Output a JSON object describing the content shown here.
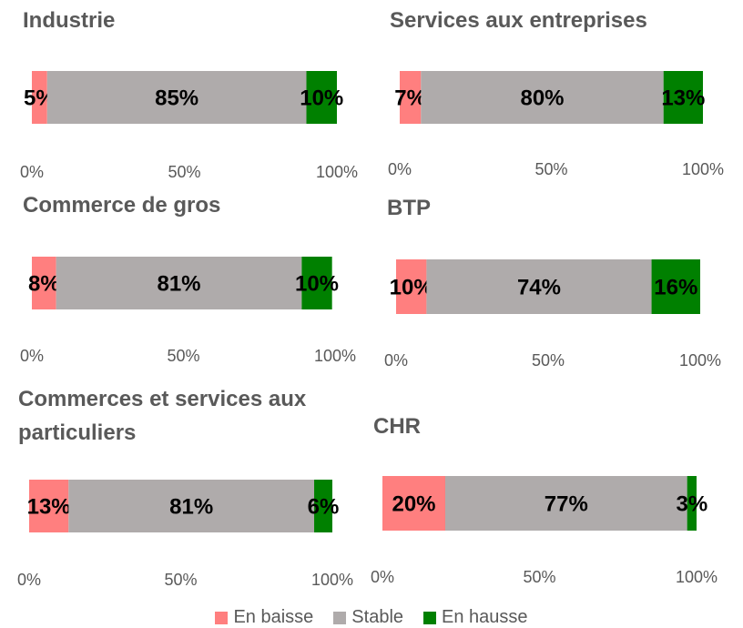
{
  "legend": {
    "series": [
      {
        "name": "En baisse",
        "color": "#ff7f7f"
      },
      {
        "name": "Stable",
        "color": "#afabab"
      },
      {
        "name": "En hausse",
        "color": "#008000"
      }
    ]
  },
  "chart_data": [
    {
      "type": "stacked-bar",
      "title": "Industrie",
      "values": [
        5,
        85,
        10
      ],
      "value_labels": [
        "5%",
        "85%",
        "10%"
      ],
      "xlim": [
        0,
        100
      ],
      "xticks": [
        {
          "value": 0,
          "label": "0%"
        },
        {
          "value": 50,
          "label": "50%"
        },
        {
          "value": 100,
          "label": "100%"
        }
      ]
    },
    {
      "type": "stacked-bar",
      "title": "Services aux entreprises",
      "values": [
        7,
        80,
        13
      ],
      "value_labels": [
        "7%",
        "80%",
        "13%"
      ],
      "xlim": [
        0,
        100
      ],
      "xticks": [
        {
          "value": 0,
          "label": "0%"
        },
        {
          "value": 50,
          "label": "50%"
        },
        {
          "value": 100,
          "label": "100%"
        }
      ]
    },
    {
      "type": "stacked-bar",
      "title": "Commerce de gros",
      "values": [
        8,
        81,
        10
      ],
      "value_labels": [
        "8%",
        "81%",
        "10%"
      ],
      "xlim": [
        0,
        100
      ],
      "xticks": [
        {
          "value": 0,
          "label": "0%"
        },
        {
          "value": 50,
          "label": "50%"
        },
        {
          "value": 100,
          "label": "100%"
        }
      ]
    },
    {
      "type": "stacked-bar",
      "title": "BTP",
      "values": [
        10,
        74,
        16
      ],
      "value_labels": [
        "10%",
        "74%",
        "16%"
      ],
      "xlim": [
        0,
        100
      ],
      "xticks": [
        {
          "value": 0,
          "label": "0%"
        },
        {
          "value": 50,
          "label": "50%"
        },
        {
          "value": 100,
          "label": "100%"
        }
      ]
    },
    {
      "type": "stacked-bar",
      "title": "Commerces et services aux particuliers",
      "values": [
        13,
        81,
        6
      ],
      "value_labels": [
        "13%",
        "81%",
        "6%"
      ],
      "xlim": [
        0,
        100
      ],
      "xticks": [
        {
          "value": 0,
          "label": "0%"
        },
        {
          "value": 50,
          "label": "50%"
        },
        {
          "value": 100,
          "label": "100%"
        }
      ]
    },
    {
      "type": "stacked-bar",
      "title": "CHR",
      "values": [
        20,
        77,
        3
      ],
      "value_labels": [
        "20%",
        "77%",
        "3%"
      ],
      "xlim": [
        0,
        100
      ],
      "xticks": [
        {
          "value": 0,
          "label": "0%"
        },
        {
          "value": 50,
          "label": "50%"
        },
        {
          "value": 100,
          "label": "100%"
        }
      ]
    }
  ]
}
